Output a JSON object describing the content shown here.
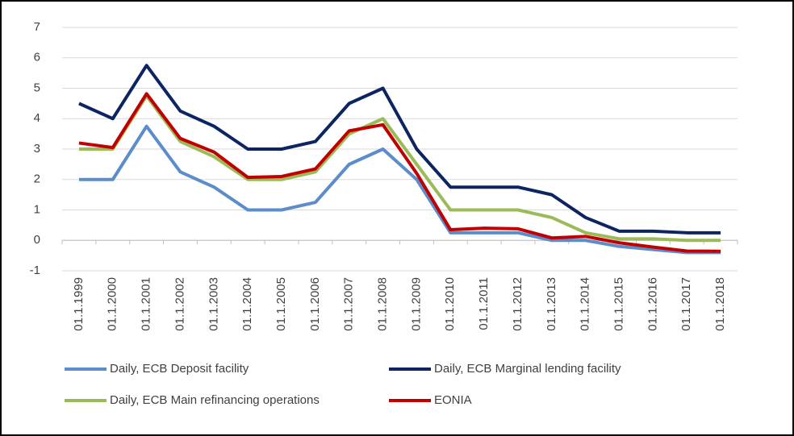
{
  "chart_data": {
    "type": "line",
    "categories": [
      "01.1.1999",
      "01.1.2000",
      "01.1.2001",
      "01.1.2002",
      "01.1.2003",
      "01.1.2004",
      "01.1.2005",
      "01.1.2006",
      "01.1.2007",
      "01.1.2008",
      "01.1.2009",
      "01.1.2010",
      "01.1.2011",
      "01.1.2012",
      "01.1.2013",
      "01.1.2014",
      "01.1.2015",
      "01.1.2016",
      "01.1.2017",
      "01.1.2018"
    ],
    "series": [
      {
        "name": "Daily, ECB Deposit facility",
        "color": "#5b8ccc",
        "values": [
          2,
          2,
          3.75,
          2.25,
          1.75,
          1,
          1,
          1.25,
          2.5,
          3,
          2,
          0.25,
          0.25,
          0.25,
          0,
          0,
          -0.2,
          -0.3,
          -0.4,
          -0.4
        ]
      },
      {
        "name": "Daily, ECB Marginal lending facility",
        "color": "#0c2461",
        "values": [
          4.5,
          4,
          5.75,
          4.25,
          3.75,
          3,
          3,
          3.25,
          4.5,
          5,
          3,
          1.75,
          1.75,
          1.75,
          1.5,
          0.75,
          0.3,
          0.3,
          0.25,
          0.25
        ]
      },
      {
        "name": "Daily, ECB Main refinancing operations",
        "color": "#9bbb59",
        "values": [
          3,
          3,
          4.75,
          3.25,
          2.75,
          2,
          2,
          2.25,
          3.5,
          4,
          2.5,
          1,
          1,
          1,
          0.75,
          0.25,
          0.05,
          0.05,
          0,
          0
        ]
      },
      {
        "name": "EONIA",
        "color": "#c00000",
        "values": [
          3.2,
          3.05,
          4.82,
          3.35,
          2.9,
          2.07,
          2.1,
          2.35,
          3.6,
          3.8,
          2.2,
          0.35,
          0.4,
          0.38,
          0.08,
          0.13,
          -0.08,
          -0.22,
          -0.35,
          -0.36
        ]
      }
    ],
    "ylim": [
      -1,
      7
    ],
    "yticks": [
      -1,
      0,
      1,
      2,
      3,
      4,
      5,
      6,
      7
    ],
    "grid": true
  }
}
